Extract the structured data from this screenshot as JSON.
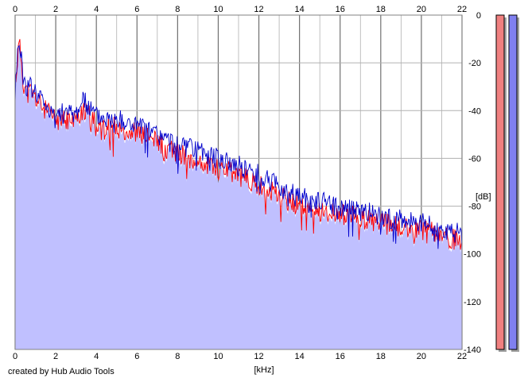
{
  "chart_data": {
    "type": "area",
    "xlabel": "[kHz]",
    "ylabel": "[dB]",
    "xlim": [
      0,
      22
    ],
    "ylim": [
      -140,
      0
    ],
    "x_ticks": [
      "0",
      "2",
      "4",
      "6",
      "8",
      "10",
      "12",
      "14",
      "16",
      "18",
      "20",
      "22"
    ],
    "y_ticks": [
      "0",
      "-20",
      "-40",
      "-60",
      "-80",
      "-100",
      "-120",
      "-140"
    ],
    "grid": true,
    "series": [
      {
        "color": "#ff0000",
        "x": [
          0,
          0.1,
          0.2,
          0.3,
          0.4,
          0.6,
          0.8,
          1,
          1.5,
          2,
          2.5,
          3,
          3.3,
          3.6,
          4,
          5,
          6,
          7,
          8,
          9,
          10,
          11,
          12,
          13,
          14,
          15,
          16,
          17,
          18,
          19,
          20,
          21,
          22
        ],
        "values": [
          -30,
          -20,
          -12,
          -18,
          -28,
          -33,
          -32,
          -35,
          -40,
          -44,
          -44,
          -44,
          -40,
          -42,
          -45,
          -47,
          -49,
          -53,
          -58,
          -61,
          -64,
          -67,
          -71,
          -76,
          -80,
          -82,
          -83,
          -85,
          -87,
          -89,
          -90,
          -92,
          -95
        ]
      },
      {
        "color": "#0000cc",
        "x": [
          0,
          0.1,
          0.2,
          0.3,
          0.4,
          0.6,
          0.8,
          1,
          1.5,
          2,
          2.5,
          3,
          3.3,
          3.6,
          4,
          5,
          6,
          7,
          8,
          9,
          10,
          11,
          12,
          13,
          14,
          15,
          16,
          17,
          18,
          19,
          20,
          21,
          22
        ],
        "values": [
          -33,
          -18,
          -10,
          -17,
          -26,
          -30,
          -30,
          -32,
          -37,
          -41,
          -41,
          -41,
          -35,
          -38,
          -42,
          -44,
          -46,
          -50,
          -55,
          -57,
          -60,
          -63,
          -67,
          -72,
          -76,
          -78,
          -80,
          -82,
          -84,
          -86,
          -87,
          -89,
          -92
        ]
      }
    ],
    "level_meters": [
      {
        "color": "#f08080",
        "level": 1.0
      },
      {
        "color": "#8080f0",
        "level": 1.0
      }
    ]
  },
  "credit": "created by Hub Audio Tools",
  "colors": {
    "fill": "#c0c0ff",
    "grid": "#b0b0b0",
    "major_grid": "#707070",
    "background": "#ffffff"
  }
}
